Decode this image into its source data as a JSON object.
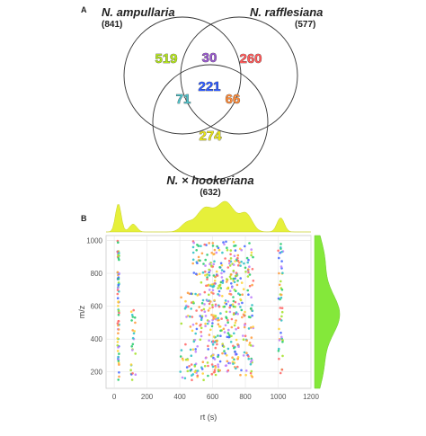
{
  "panel_labels": {
    "a": "A",
    "b": "B"
  },
  "colors": {
    "circle_stroke": "#333333",
    "density_fill": "#e6f03a",
    "side_density_fill": "#84e83a",
    "point_palette": [
      "#a6e22e",
      "#ff6b6b",
      "#4a6cff",
      "#c084fc",
      "#ffd43b",
      "#34c3c8",
      "#ff9f43",
      "#2ecc71"
    ]
  },
  "chart_data": [
    {
      "type": "venn",
      "sets": [
        {
          "name": "N. ampullaria",
          "count_label": "(841)"
        },
        {
          "name": "N. rafflesiana",
          "count_label": "(577)"
        },
        {
          "name": "N. × hookeriana",
          "count_label": "(632)"
        }
      ],
      "regions": [
        {
          "sets": [
            "N. ampullaria"
          ],
          "value": "519",
          "color": "#b5e61d"
        },
        {
          "sets": [
            "N. ampullaria",
            "N. rafflesiana"
          ],
          "value": "30",
          "color": "#9b59d0"
        },
        {
          "sets": [
            "N. rafflesiana"
          ],
          "value": "260",
          "color": "#ff5a5a"
        },
        {
          "sets": [
            "N. ampullaria",
            "N. rafflesiana",
            "N. × hookeriana"
          ],
          "value": "221",
          "color": "#2f5bff"
        },
        {
          "sets": [
            "N. ampullaria",
            "N. × hookeriana"
          ],
          "value": "71",
          "color": "#4fc1c8"
        },
        {
          "sets": [
            "N. rafflesiana",
            "N. × hookeriana"
          ],
          "value": "66",
          "color": "#ff8c3a"
        },
        {
          "sets": [
            "N. × hookeriana"
          ],
          "value": "274",
          "color": "#e8e41c"
        }
      ]
    },
    {
      "type": "scatter",
      "xlabel": "rt (s)",
      "ylabel": "m/z",
      "xlim": [
        -50,
        1200
      ],
      "ylim": [
        100,
        1030
      ],
      "xticks": [
        0,
        200,
        400,
        600,
        800,
        1000,
        1200
      ],
      "yticks": [
        200,
        400,
        600,
        800,
        1000
      ],
      "grid": true,
      "marginal_densities": {
        "top": "rt",
        "right": "m/z"
      },
      "clusters": [
        {
          "rt_range": [
            20,
            30
          ],
          "mz_range": [
            150,
            1000
          ],
          "n": 70
        },
        {
          "rt_range": [
            100,
            130
          ],
          "mz_range": [
            150,
            600
          ],
          "n": 25
        },
        {
          "rt_range": [
            400,
            480
          ],
          "mz_range": [
            150,
            700
          ],
          "n": 40
        },
        {
          "rt_range": [
            480,
            620
          ],
          "mz_range": [
            150,
            1000
          ],
          "n": 160
        },
        {
          "rt_range": [
            600,
            760
          ],
          "mz_range": [
            200,
            1000
          ],
          "n": 230
        },
        {
          "rt_range": [
            760,
            850
          ],
          "mz_range": [
            150,
            1000
          ],
          "n": 90
        },
        {
          "rt_range": [
            1000,
            1030
          ],
          "mz_range": [
            150,
            1000
          ],
          "n": 45
        }
      ]
    }
  ]
}
